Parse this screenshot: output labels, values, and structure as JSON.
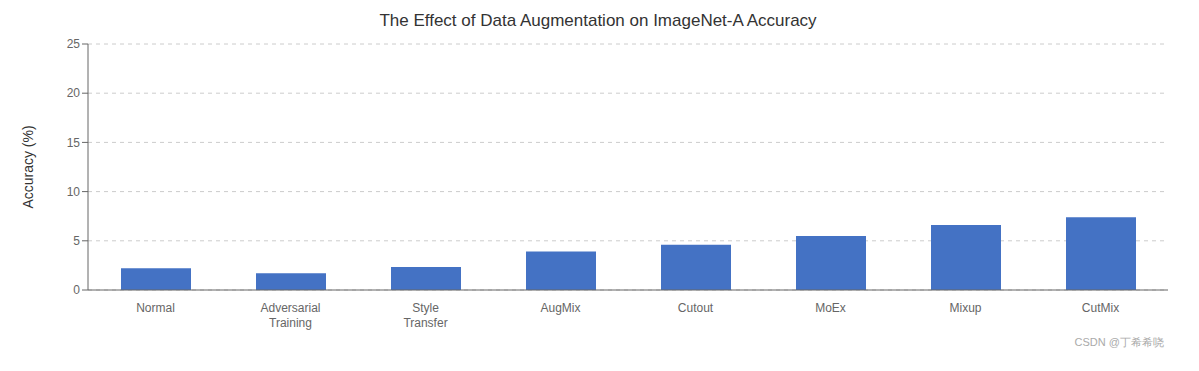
{
  "chart_data": {
    "type": "bar",
    "title": "The Effect of Data Augmentation on ImageNet-A Accuracy",
    "ylabel": "Accuracy (%)",
    "categories": [
      "Normal",
      "Adversarial\nTraining",
      "Style\nTransfer",
      "AugMix",
      "Cutout",
      "MoEx",
      "Mixup",
      "CutMix"
    ],
    "values": [
      2.2,
      1.7,
      2.35,
      3.9,
      4.6,
      5.5,
      6.6,
      7.4
    ],
    "color": "#4472c4",
    "ylim": [
      0,
      25
    ],
    "yticks": [
      0,
      5,
      10,
      15,
      20,
      25
    ],
    "grid": true,
    "annotations": [
      "CSDN @丁希希哓"
    ]
  }
}
